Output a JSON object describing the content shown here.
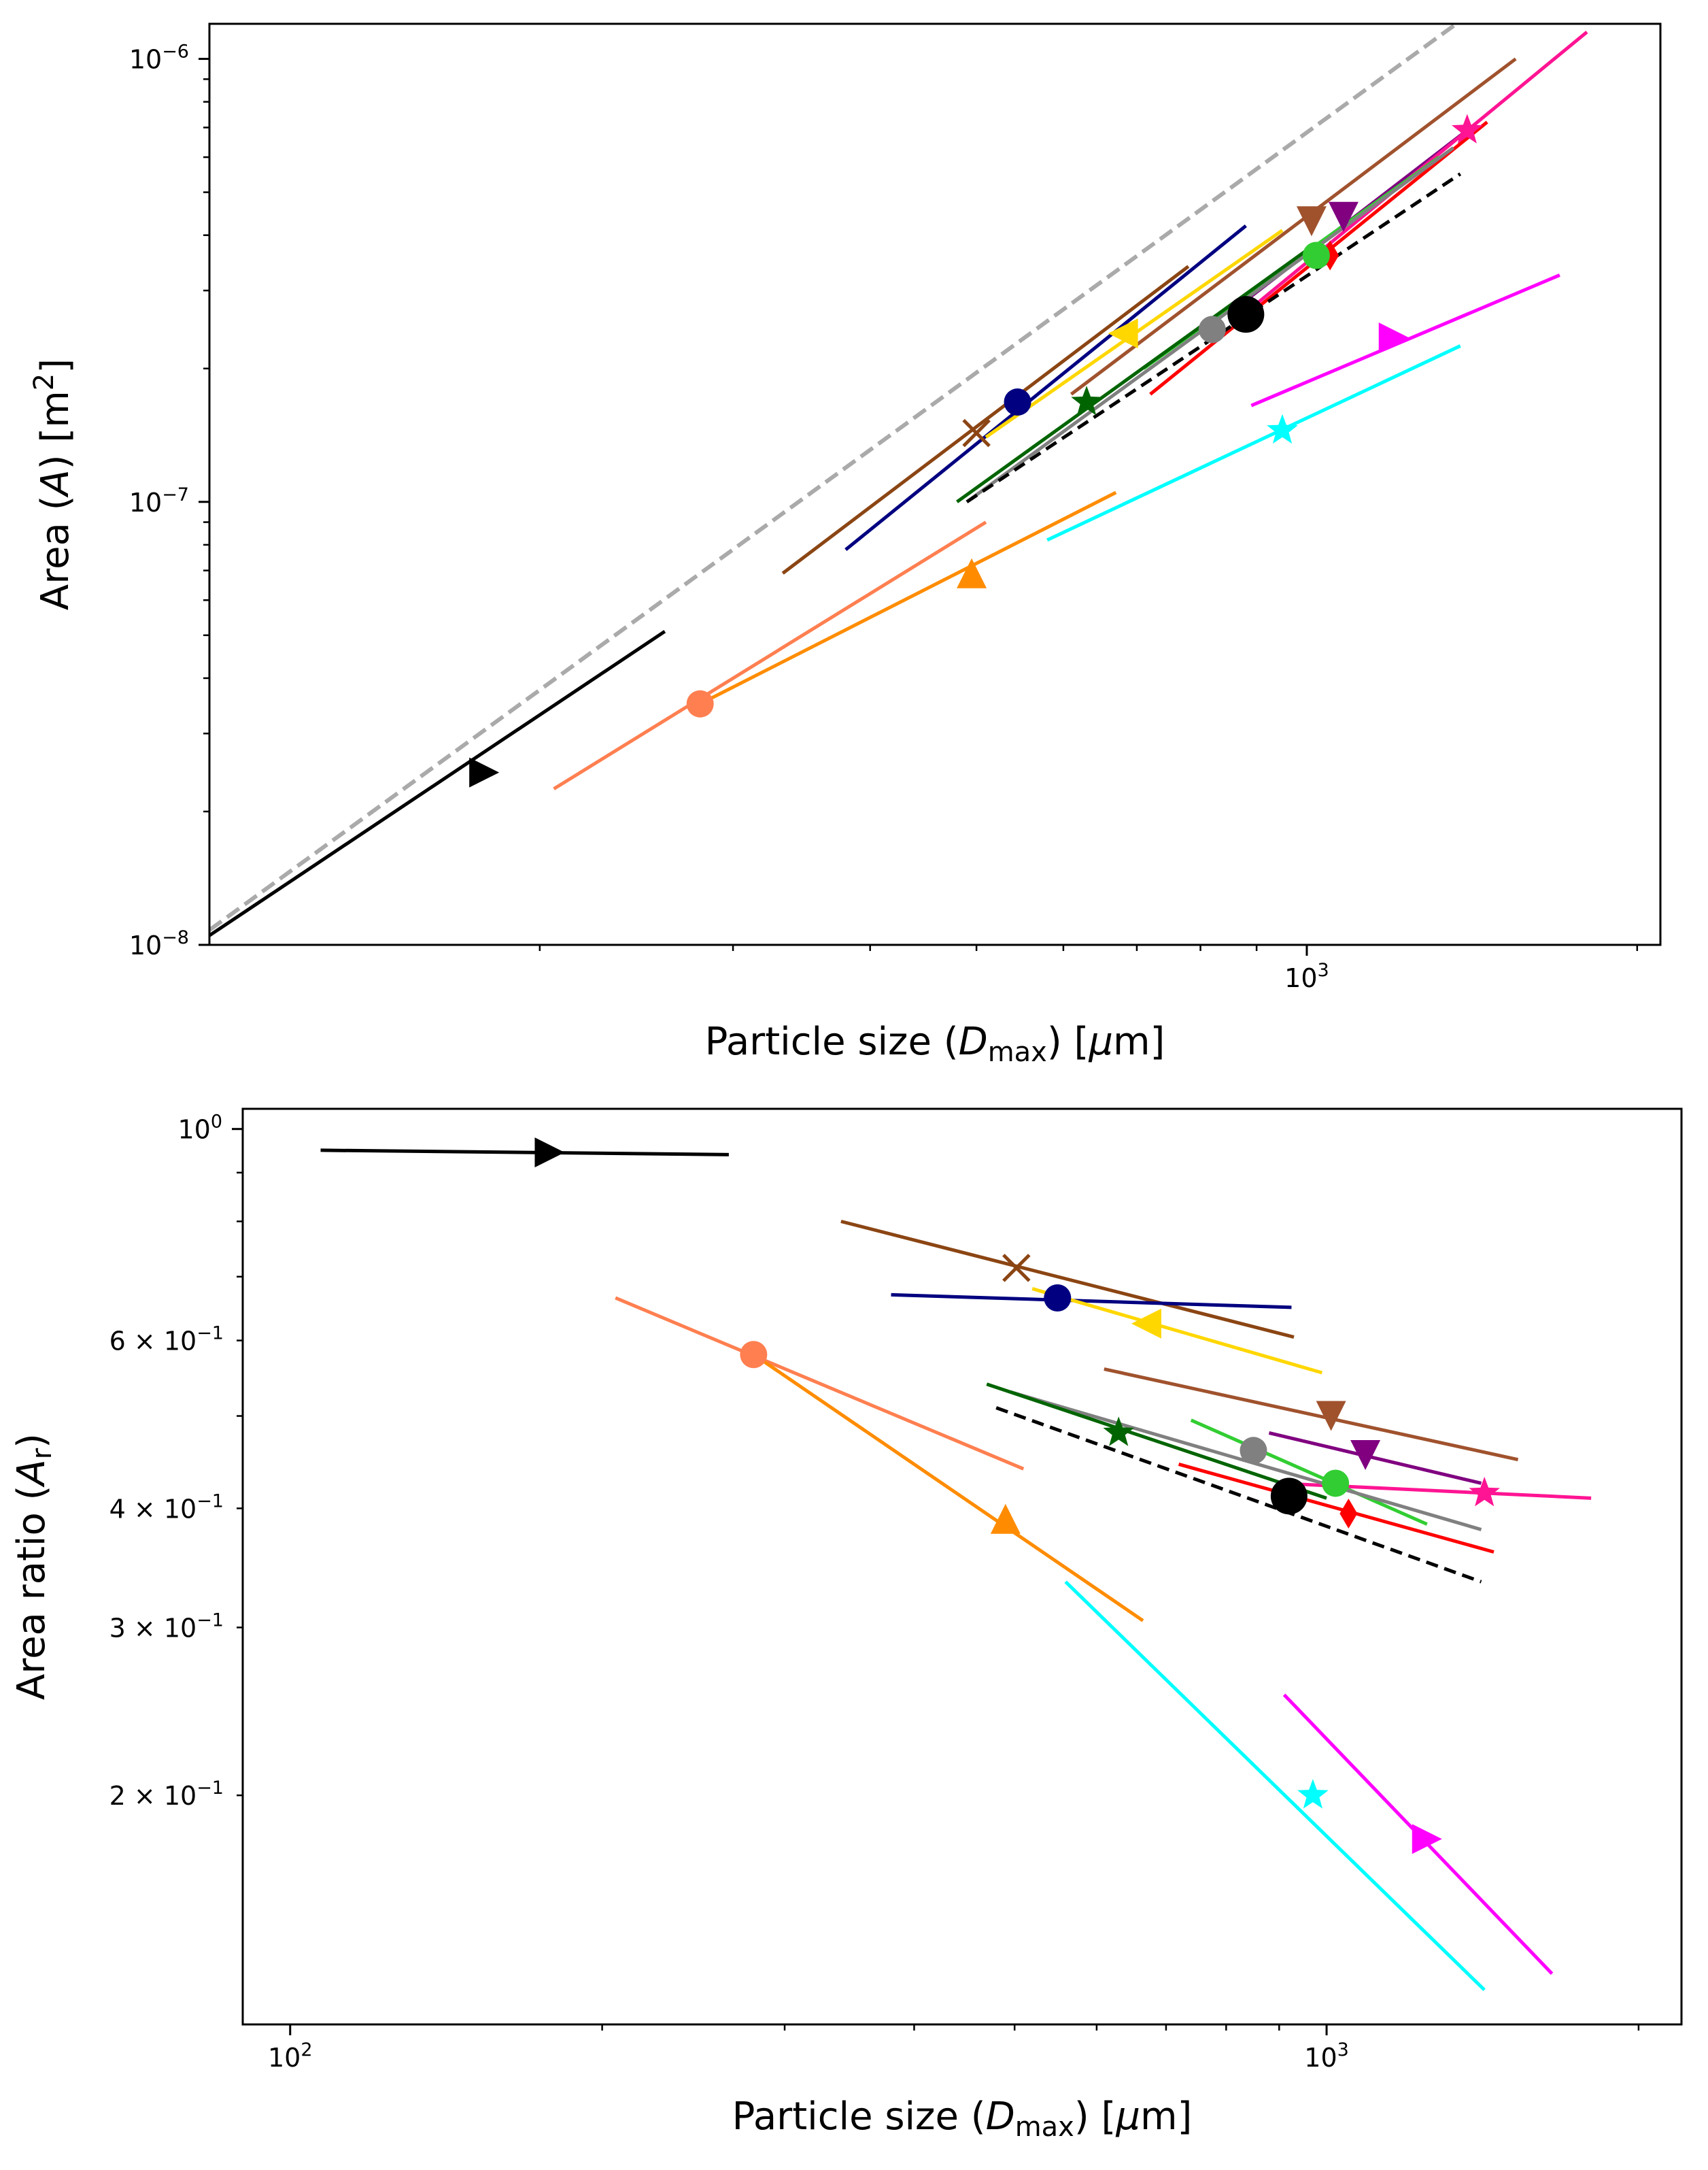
{
  "figure_caption": "",
  "chart_data": [
    {
      "type": "line",
      "panel": "top",
      "title": "",
      "xlabel": "Particle size (D_max) [μm]",
      "xlabel_parts": {
        "prefix": "Particle size (",
        "symbol": "D",
        "subscript": "max",
        "suffix": ") [",
        "mu": "μ",
        "unit_tail": "m]"
      },
      "ylabel": "Area (A) [m2]",
      "ylabel_parts": {
        "prefix": "Area (",
        "symbol": "A",
        "suffix": ") [m",
        "superscript": "2",
        "close": "]"
      },
      "xscale": "log",
      "yscale": "log",
      "xlim": [
        100,
        2100
      ],
      "ylim": [
        1e-08,
        1.2e-06
      ],
      "xticks_major": [
        {
          "value": 1000,
          "base": "10",
          "exp": "3"
        }
      ],
      "xticks_minor": [
        200,
        300,
        400,
        500,
        600,
        700,
        800,
        900,
        2000
      ],
      "yticks_major": [
        {
          "value": 1e-08,
          "base": "10",
          "exp": "−8"
        },
        {
          "value": 1e-07,
          "base": "10",
          "exp": "−7"
        },
        {
          "value": 1e-06,
          "base": "10",
          "exp": "−6"
        }
      ],
      "yticks_minor": [
        2e-08,
        3e-08,
        4e-08,
        5e-08,
        6e-08,
        7e-08,
        8e-08,
        9e-08,
        2e-07,
        3e-07,
        4e-07,
        5e-07,
        6e-07,
        7e-07,
        8e-07,
        9e-07
      ],
      "reference_lines": [
        {
          "name": "gray-dashed-reference-line",
          "color": "#aaaaaa",
          "dash": "dashed",
          "x": [
            100,
            1400
          ],
          "y": [
            1.08e-08,
            1.25e-06
          ]
        }
      ],
      "series": [
        {
          "name": "black-triangle-right",
          "color": "#000000",
          "marker": "triangle-right",
          "line": {
            "x": [
              100,
              260
            ],
            "y": [
              1.05e-08,
              5.1e-08
            ]
          },
          "point": {
            "x": 178,
            "y": 2.45e-08
          }
        },
        {
          "name": "coral-circle",
          "color": "#ff7f50",
          "marker": "circle",
          "line": {
            "x": [
              206,
              510
            ],
            "y": [
              2.25e-08,
              9e-08
            ]
          },
          "point": {
            "x": 280,
            "y": 3.5e-08
          }
        },
        {
          "name": "darkorange-triangle-up",
          "color": "#ff8c00",
          "marker": "triangle-up",
          "line": {
            "x": [
              280,
              670
            ],
            "y": [
              3.5e-08,
              1.05e-07
            ]
          },
          "point": {
            "x": 495,
            "y": 6.9e-08
          }
        },
        {
          "name": "saddlebrown-x",
          "color": "#8b4513",
          "marker": "x",
          "line": {
            "x": [
              333,
              780
            ],
            "y": [
              6.9e-08,
              3.4e-07
            ]
          },
          "point": {
            "x": 500,
            "y": 1.43e-07
          }
        },
        {
          "name": "navy-circle",
          "color": "#000080",
          "marker": "circle",
          "line": {
            "x": [
              380,
              880
            ],
            "y": [
              7.8e-08,
              4.2e-07
            ]
          },
          "point": {
            "x": 545,
            "y": 1.68e-07
          }
        },
        {
          "name": "gold-triangle-left",
          "color": "#ffd700",
          "marker": "triangle-left",
          "line": {
            "x": [
              510,
              950
            ],
            "y": [
              1.4e-07,
              4.1e-07
            ]
          },
          "point": {
            "x": 680,
            "y": 2.4e-07
          }
        },
        {
          "name": "sienna-triangle-down",
          "color": "#a0522d",
          "marker": "triangle-down",
          "line": {
            "x": [
              610,
              1550
            ],
            "y": [
              1.75e-07,
              1e-06
            ]
          },
          "point": {
            "x": 1010,
            "y": 4.3e-07
          }
        },
        {
          "name": "purple-triangle-down",
          "color": "#800080",
          "marker": "triangle-down",
          "line": {
            "x": [
              880,
              1400
            ],
            "y": [
              2.85e-07,
              6.9e-07
            ]
          },
          "point": {
            "x": 1080,
            "y": 4.4e-07
          }
        },
        {
          "name": "deeppink-star",
          "color": "#ff1493",
          "marker": "star",
          "line": {
            "x": [
              900,
              1800
            ],
            "y": [
              2.8e-07,
              1.15e-06
            ]
          },
          "point": {
            "x": 1400,
            "y": 6.9e-07
          }
        },
        {
          "name": "red-diamond",
          "color": "#ff0000",
          "marker": "diamond",
          "line": {
            "x": [
              720,
              1460
            ],
            "y": [
              1.75e-07,
              7.2e-07
            ]
          },
          "point": {
            "x": 1050,
            "y": 3.6e-07
          }
        },
        {
          "name": "lime-circle",
          "color": "#32cd32",
          "marker": "circle",
          "line": {
            "x": [
              710,
              1320
            ],
            "y": [
              2e-07,
              6e-07
            ]
          },
          "point": {
            "x": 1020,
            "y": 3.6e-07
          }
        },
        {
          "name": "gray-circle",
          "color": "#808080",
          "marker": "circle",
          "line": {
            "x": [
              490,
              1360
            ],
            "y": [
              1e-07,
              6.3e-07
            ]
          },
          "point": {
            "x": 820,
            "y": 2.45e-07
          }
        },
        {
          "name": "darkgreen-star",
          "color": "#006400",
          "marker": "star",
          "line": {
            "x": [
              480,
              1000
            ],
            "y": [
              1e-07,
              3.7e-07
            ]
          },
          "point": {
            "x": 630,
            "y": 1.68e-07
          }
        },
        {
          "name": "black-large-circle",
          "color": "#000000",
          "marker": "circle-large",
          "line": {
            "x": [
              490,
              1380
            ],
            "y": [
              1e-07,
              5.5e-07
            ],
            "dash": "dashed"
          },
          "point": {
            "x": 880,
            "y": 2.65e-07
          }
        },
        {
          "name": "magenta-triangle-right",
          "color": "#ff00ff",
          "marker": "triangle-right",
          "line": {
            "x": [
              890,
              1700
            ],
            "y": [
              1.65e-07,
              3.25e-07
            ]
          },
          "point": {
            "x": 1200,
            "y": 2.35e-07
          }
        },
        {
          "name": "cyan-star",
          "color": "#00ffff",
          "marker": "star",
          "line": {
            "x": [
              580,
              1380
            ],
            "y": [
              8.2e-08,
              2.25e-07
            ]
          },
          "point": {
            "x": 950,
            "y": 1.45e-07
          }
        }
      ]
    },
    {
      "type": "line",
      "panel": "bottom",
      "title": "",
      "xlabel": "Particle size (D_max) [μm]",
      "xlabel_parts": {
        "prefix": "Particle size (",
        "symbol": "D",
        "subscript": "max",
        "suffix": ") [",
        "mu": "μ",
        "unit_tail": "m]"
      },
      "ylabel": "Area ratio (A_r)",
      "ylabel_parts": {
        "prefix": "Area ratio (",
        "symbol": "A",
        "subscript": "r",
        "suffix": ")"
      },
      "xscale": "log",
      "yscale": "log",
      "xlim": [
        90,
        2200
      ],
      "ylim": [
        0.115,
        1.05
      ],
      "xticks_major": [
        {
          "value": 100,
          "base": "10",
          "exp": "2"
        },
        {
          "value": 1000,
          "base": "10",
          "exp": "3"
        }
      ],
      "xticks_minor": [
        200,
        300,
        400,
        500,
        600,
        700,
        800,
        900,
        2000
      ],
      "yticks_major": [
        {
          "value": 1.0,
          "base": "10",
          "exp": "0"
        }
      ],
      "yticks_labeled_minor": [
        {
          "value": 0.6,
          "mant": "6 × 10",
          "exp": "−1"
        },
        {
          "value": 0.4,
          "mant": "4 × 10",
          "exp": "−1"
        },
        {
          "value": 0.3,
          "mant": "3 × 10",
          "exp": "−1"
        },
        {
          "value": 0.2,
          "mant": "2 × 10",
          "exp": "−1"
        }
      ],
      "yticks_minor": [
        0.5,
        0.7,
        0.8,
        0.9
      ],
      "series": [
        {
          "name": "black-triangle-right",
          "color": "#000000",
          "marker": "triangle-right",
          "line": {
            "x": [
              107,
              265
            ],
            "y": [
              0.95,
              0.94
            ]
          },
          "point": {
            "x": 178,
            "y": 0.945
          }
        },
        {
          "name": "coral-circle",
          "color": "#ff7f50",
          "marker": "circle",
          "line": {
            "x": [
              206,
              510
            ],
            "y": [
              0.665,
              0.44
            ]
          },
          "point": {
            "x": 280,
            "y": 0.58
          }
        },
        {
          "name": "darkorange-triangle-up",
          "color": "#ff8c00",
          "marker": "triangle-up",
          "line": {
            "x": [
              280,
              665
            ],
            "y": [
              0.58,
              0.305
            ]
          },
          "point": {
            "x": 490,
            "y": 0.39
          }
        },
        {
          "name": "saddlebrown-x",
          "color": "#8b4513",
          "marker": "x",
          "line": {
            "x": [
              340,
              930
            ],
            "y": [
              0.8,
              0.605
            ]
          },
          "point": {
            "x": 502,
            "y": 0.715
          }
        },
        {
          "name": "navy-circle",
          "color": "#000080",
          "marker": "circle",
          "line": {
            "x": [
              380,
              925
            ],
            "y": [
              0.67,
              0.65
            ]
          },
          "point": {
            "x": 550,
            "y": 0.665
          }
        },
        {
          "name": "gold-triangle-left",
          "color": "#ffd700",
          "marker": "triangle-left",
          "line": {
            "x": [
              520,
              990
            ],
            "y": [
              0.68,
              0.555
            ]
          },
          "point": {
            "x": 670,
            "y": 0.625
          }
        },
        {
          "name": "sienna-triangle-down",
          "color": "#a0522d",
          "marker": "triangle-down",
          "line": {
            "x": [
              610,
              1530
            ],
            "y": [
              0.56,
              0.45
            ]
          },
          "point": {
            "x": 1010,
            "y": 0.5
          }
        },
        {
          "name": "purple-triangle-down",
          "color": "#800080",
          "marker": "triangle-down",
          "line": {
            "x": [
              880,
              1410
            ],
            "y": [
              0.48,
              0.425
            ]
          },
          "point": {
            "x": 1090,
            "y": 0.455
          }
        },
        {
          "name": "deeppink-star",
          "color": "#ff1493",
          "marker": "star",
          "line": {
            "x": [
              900,
              1800
            ],
            "y": [
              0.425,
              0.41
            ]
          },
          "point": {
            "x": 1420,
            "y": 0.415
          }
        },
        {
          "name": "red-diamond",
          "color": "#ff0000",
          "marker": "diamond",
          "line": {
            "x": [
              720,
              1450
            ],
            "y": [
              0.445,
              0.36
            ]
          },
          "point": {
            "x": 1050,
            "y": 0.395
          }
        },
        {
          "name": "lime-circle",
          "color": "#32cd32",
          "marker": "circle",
          "line": {
            "x": [
              740,
              1250
            ],
            "y": [
              0.495,
              0.385
            ]
          },
          "point": {
            "x": 1020,
            "y": 0.425
          }
        },
        {
          "name": "gray-circle",
          "color": "#808080",
          "marker": "circle",
          "line": {
            "x": [
              495,
              1410
            ],
            "y": [
              0.53,
              0.38
            ]
          },
          "point": {
            "x": 850,
            "y": 0.46
          }
        },
        {
          "name": "darkgreen-star",
          "color": "#006400",
          "marker": "star",
          "line": {
            "x": [
              470,
              1000
            ],
            "y": [
              0.54,
              0.41
            ]
          },
          "point": {
            "x": 630,
            "y": 0.48
          }
        },
        {
          "name": "black-large-circle",
          "color": "#000000",
          "marker": "circle-large",
          "line": {
            "x": [
              480,
              1410
            ],
            "y": [
              0.51,
              0.335
            ],
            "dash": "dashed"
          },
          "point": {
            "x": 920,
            "y": 0.412
          }
        },
        {
          "name": "magenta-triangle-right",
          "color": "#ff00ff",
          "marker": "triangle-right",
          "line": {
            "x": [
              910,
              1650
            ],
            "y": [
              0.255,
              0.13
            ]
          },
          "point": {
            "x": 1250,
            "y": 0.18
          }
        },
        {
          "name": "cyan-star",
          "color": "#00ffff",
          "marker": "star",
          "line": {
            "x": [
              560,
              1420
            ],
            "y": [
              0.335,
              0.125
            ]
          },
          "point": {
            "x": 970,
            "y": 0.2
          }
        }
      ]
    }
  ]
}
